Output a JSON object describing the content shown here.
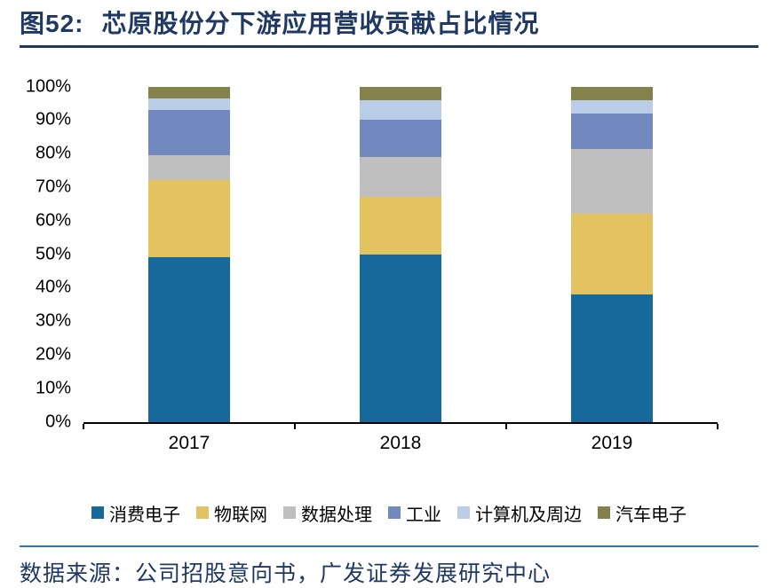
{
  "figure": {
    "label": "图52:",
    "title": "芯原股份分下游应用营收贡献占比情况"
  },
  "source_note": "数据来源：公司招股意向书，广发证券发展研究中心",
  "colors": {
    "title_text": "#1F3864",
    "title_rule": "#1F3864",
    "footer_rule": "#2E75B6",
    "axis": "#000000"
  },
  "chart_data": {
    "type": "bar",
    "variant": "stacked-100-percent",
    "title": "芯原股份分下游应用营收贡献占比情况",
    "categories": [
      "2017",
      "2018",
      "2019"
    ],
    "series": [
      {
        "name": "消费电子",
        "color": "#17699C",
        "values": [
          49,
          50,
          38
        ]
      },
      {
        "name": "物联网",
        "color": "#E3C35F",
        "values": [
          23,
          17,
          24
        ]
      },
      {
        "name": "数据处理",
        "color": "#BFBFBF",
        "values": [
          7.5,
          12,
          19.5
        ]
      },
      {
        "name": "工业",
        "color": "#7189BE",
        "values": [
          13.5,
          11,
          10.5
        ]
      },
      {
        "name": "计算机及周边",
        "color": "#BACDE6",
        "values": [
          3.5,
          6,
          4
        ]
      },
      {
        "name": "汽车电子",
        "color": "#84824A",
        "values": [
          3.5,
          4,
          4
        ]
      }
    ],
    "xlabel": "",
    "ylabel": "",
    "ylim": [
      0,
      100
    ],
    "yticks": [
      "0%",
      "10%",
      "20%",
      "30%",
      "40%",
      "50%",
      "60%",
      "70%",
      "80%",
      "90%",
      "100%"
    ],
    "grid": false,
    "legend_position": "bottom"
  }
}
